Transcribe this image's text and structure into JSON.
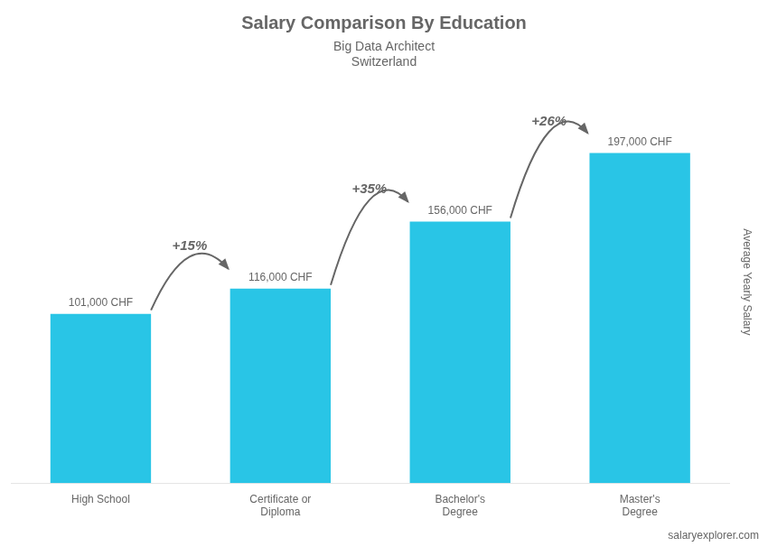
{
  "chart_data": {
    "type": "bar",
    "title": "Salary Comparison By Education",
    "subtitle": [
      "Big Data Architect",
      "Switzerland"
    ],
    "ylabel": "Average Yearly Salary",
    "source": "salaryexplorer.com",
    "categories": [
      "High School",
      "Certificate or\nDiploma",
      "Bachelor's\nDegree",
      "Master's\nDegree"
    ],
    "values": [
      101000,
      116000,
      156000,
      197000
    ],
    "value_labels": [
      "101,000 CHF",
      "116,000 CHF",
      "156,000 CHF",
      "197,000 CHF"
    ],
    "data_labels": true,
    "annotations": [
      "+15%",
      "+35%",
      "+26%"
    ],
    "color": "#29c5e6",
    "ylim": [
      0,
      240000
    ],
    "grid": false,
    "tick_labels": "x"
  }
}
